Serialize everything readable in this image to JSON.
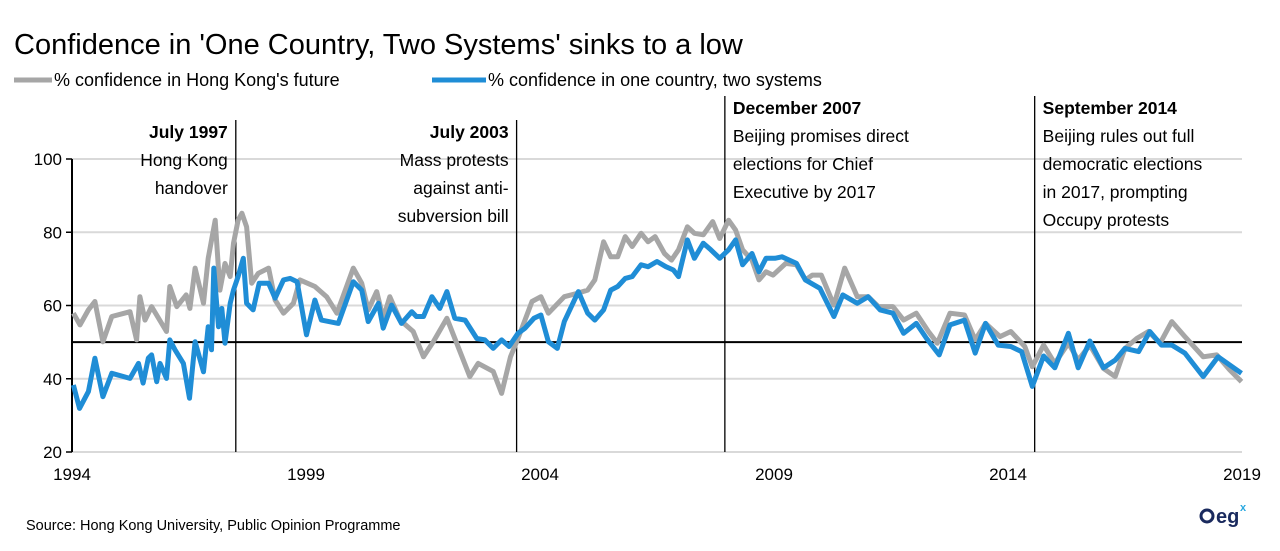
{
  "chart_data": {
    "type": "line",
    "title": "Confidence in 'One Country, Two Systems' sinks to a low",
    "xlabel": "",
    "ylabel": "",
    "xlim": [
      1994,
      2019
    ],
    "ylim": [
      20,
      100
    ],
    "x_ticks": [
      "1994",
      "1999",
      "2004",
      "2009",
      "2014",
      "2019"
    ],
    "y_ticks": [
      "20",
      "40",
      "60",
      "80",
      "100"
    ],
    "grid": "horizontal",
    "legend_position": "top-left",
    "reference_line": 50,
    "series": [
      {
        "name": "% confidence in Hong Kong's future",
        "color": "#a6a6a6",
        "points": [
          [
            1994.03,
            57.9
          ],
          [
            1994.17,
            54.7
          ],
          [
            1994.35,
            58.8
          ],
          [
            1994.49,
            61.1
          ],
          [
            1994.66,
            50.1
          ],
          [
            1994.85,
            57.0
          ],
          [
            1995.24,
            58.3
          ],
          [
            1995.38,
            50.6
          ],
          [
            1995.45,
            62.4
          ],
          [
            1995.56,
            56.0
          ],
          [
            1995.7,
            59.7
          ],
          [
            1996.02,
            52.9
          ],
          [
            1996.09,
            65.2
          ],
          [
            1996.24,
            59.7
          ],
          [
            1996.44,
            62.9
          ],
          [
            1996.52,
            59.2
          ],
          [
            1996.63,
            70.2
          ],
          [
            1996.81,
            60.6
          ],
          [
            1996.91,
            72.9
          ],
          [
            1997.06,
            83.3
          ],
          [
            1997.16,
            64.2
          ],
          [
            1997.27,
            71.5
          ],
          [
            1997.38,
            67.9
          ],
          [
            1997.45,
            77.0
          ],
          [
            1997.55,
            83.3
          ],
          [
            1997.63,
            85.2
          ],
          [
            1997.73,
            81.5
          ],
          [
            1997.84,
            66.1
          ],
          [
            1997.98,
            68.8
          ],
          [
            1998.2,
            70.2
          ],
          [
            1998.34,
            61.5
          ],
          [
            1998.52,
            57.9
          ],
          [
            1998.73,
            60.6
          ],
          [
            1998.87,
            67.0
          ],
          [
            1999.19,
            65.2
          ],
          [
            1999.44,
            62.4
          ],
          [
            1999.66,
            57.9
          ],
          [
            2000.01,
            70.2
          ],
          [
            2000.19,
            66.1
          ],
          [
            2000.33,
            58.8
          ],
          [
            2000.51,
            63.8
          ],
          [
            2000.65,
            56.5
          ],
          [
            2000.79,
            62.4
          ],
          [
            2001.01,
            56.0
          ],
          [
            2001.29,
            52.9
          ],
          [
            2001.51,
            46.0
          ],
          [
            2001.72,
            50.1
          ],
          [
            2002.01,
            56.5
          ],
          [
            2002.22,
            49.7
          ],
          [
            2002.5,
            40.6
          ],
          [
            2002.68,
            44.2
          ],
          [
            2003.0,
            42.0
          ],
          [
            2003.18,
            36.0
          ],
          [
            2003.37,
            46.0
          ],
          [
            2003.53,
            51.0
          ],
          [
            2003.83,
            61.1
          ],
          [
            2004.02,
            62.4
          ],
          [
            2004.18,
            57.9
          ],
          [
            2004.52,
            62.4
          ],
          [
            2004.79,
            63.3
          ],
          [
            2005.02,
            64.2
          ],
          [
            2005.17,
            67.0
          ],
          [
            2005.36,
            77.4
          ],
          [
            2005.51,
            73.3
          ],
          [
            2005.66,
            73.3
          ],
          [
            2005.82,
            78.8
          ],
          [
            2005.97,
            76.1
          ],
          [
            2006.16,
            79.7
          ],
          [
            2006.31,
            77.4
          ],
          [
            2006.46,
            78.8
          ],
          [
            2006.66,
            74.2
          ],
          [
            2006.81,
            72.4
          ],
          [
            2006.96,
            75.2
          ],
          [
            2007.15,
            81.5
          ],
          [
            2007.3,
            79.7
          ],
          [
            2007.49,
            79.3
          ],
          [
            2007.69,
            82.9
          ],
          [
            2007.84,
            78.3
          ],
          [
            2008.03,
            83.3
          ],
          [
            2008.18,
            80.6
          ],
          [
            2008.33,
            75.2
          ],
          [
            2008.53,
            72.4
          ],
          [
            2008.68,
            67.0
          ],
          [
            2008.83,
            69.2
          ],
          [
            2008.98,
            68.3
          ],
          [
            2009.25,
            71.5
          ],
          [
            2009.48,
            71.1
          ],
          [
            2009.67,
            67.0
          ],
          [
            2009.82,
            68.3
          ],
          [
            2010.01,
            68.3
          ],
          [
            2010.28,
            60.1
          ],
          [
            2010.51,
            70.2
          ],
          [
            2010.78,
            62.4
          ],
          [
            2011.01,
            62.4
          ],
          [
            2011.23,
            59.7
          ],
          [
            2011.54,
            59.7
          ],
          [
            2011.77,
            56.0
          ],
          [
            2012.04,
            57.9
          ],
          [
            2012.3,
            52.9
          ],
          [
            2012.49,
            49.7
          ],
          [
            2012.76,
            57.9
          ],
          [
            2013.07,
            57.4
          ],
          [
            2013.3,
            50.6
          ],
          [
            2013.52,
            55.1
          ],
          [
            2013.83,
            51.5
          ],
          [
            2014.06,
            52.9
          ],
          [
            2014.36,
            48.8
          ],
          [
            2014.52,
            43.3
          ],
          [
            2014.76,
            49.2
          ],
          [
            2015.0,
            44.2
          ],
          [
            2015.29,
            49.7
          ],
          [
            2015.5,
            45.1
          ],
          [
            2015.75,
            49.2
          ],
          [
            2016.04,
            42.8
          ],
          [
            2016.29,
            40.6
          ],
          [
            2016.5,
            48.3
          ],
          [
            2016.75,
            51.0
          ],
          [
            2017.0,
            52.9
          ],
          [
            2017.25,
            49.7
          ],
          [
            2017.5,
            55.6
          ],
          [
            2017.78,
            51.5
          ],
          [
            2018.17,
            46.0
          ],
          [
            2018.46,
            46.5
          ],
          [
            2018.74,
            42.4
          ],
          [
            2018.99,
            39.2
          ]
        ]
      },
      {
        "name": "% confidence in one country, two systems",
        "color": "#1f8dd6",
        "points": [
          [
            1994.03,
            38.3
          ],
          [
            1994.16,
            31.9
          ],
          [
            1994.35,
            36.5
          ],
          [
            1994.49,
            45.6
          ],
          [
            1994.66,
            35.1
          ],
          [
            1994.85,
            41.5
          ],
          [
            1995.24,
            40.1
          ],
          [
            1995.42,
            44.2
          ],
          [
            1995.52,
            38.8
          ],
          [
            1995.63,
            45.6
          ],
          [
            1995.7,
            46.5
          ],
          [
            1995.81,
            39.2
          ],
          [
            1995.88,
            44.2
          ],
          [
            1996.02,
            40.1
          ],
          [
            1996.09,
            50.6
          ],
          [
            1996.2,
            47.9
          ],
          [
            1996.38,
            44.2
          ],
          [
            1996.51,
            34.7
          ],
          [
            1996.63,
            50.1
          ],
          [
            1996.81,
            41.9
          ],
          [
            1996.91,
            54.2
          ],
          [
            1996.98,
            47.9
          ],
          [
            1997.03,
            70.2
          ],
          [
            1997.13,
            54.2
          ],
          [
            1997.2,
            59.2
          ],
          [
            1997.27,
            49.7
          ],
          [
            1997.38,
            60.6
          ],
          [
            1997.45,
            64.2
          ],
          [
            1997.55,
            67.9
          ],
          [
            1997.66,
            72.9
          ],
          [
            1997.73,
            60.6
          ],
          [
            1997.87,
            58.8
          ],
          [
            1998.0,
            66.1
          ],
          [
            1998.2,
            66.1
          ],
          [
            1998.34,
            62.0
          ],
          [
            1998.52,
            67.0
          ],
          [
            1998.66,
            67.4
          ],
          [
            1998.81,
            66.5
          ],
          [
            1999.01,
            52.0
          ],
          [
            1999.19,
            61.5
          ],
          [
            1999.33,
            56.0
          ],
          [
            1999.69,
            55.1
          ],
          [
            2000.01,
            66.5
          ],
          [
            2000.19,
            64.2
          ],
          [
            2000.33,
            55.6
          ],
          [
            2000.55,
            60.6
          ],
          [
            2000.65,
            53.8
          ],
          [
            2000.83,
            60.1
          ],
          [
            2001.04,
            55.1
          ],
          [
            2001.26,
            58.3
          ],
          [
            2001.36,
            57.0
          ],
          [
            2001.51,
            57.0
          ],
          [
            2001.69,
            62.4
          ],
          [
            2001.86,
            59.2
          ],
          [
            2002.01,
            63.8
          ],
          [
            2002.18,
            56.5
          ],
          [
            2002.4,
            56.0
          ],
          [
            2002.65,
            51.0
          ],
          [
            2002.82,
            50.6
          ],
          [
            2003.0,
            48.3
          ],
          [
            2003.18,
            50.6
          ],
          [
            2003.34,
            48.8
          ],
          [
            2003.53,
            52.4
          ],
          [
            2003.68,
            53.8
          ],
          [
            2003.87,
            56.5
          ],
          [
            2004.02,
            57.4
          ],
          [
            2004.18,
            50.1
          ],
          [
            2004.37,
            48.3
          ],
          [
            2004.52,
            55.6
          ],
          [
            2004.82,
            63.8
          ],
          [
            2005.02,
            57.9
          ],
          [
            2005.17,
            56.0
          ],
          [
            2005.36,
            58.8
          ],
          [
            2005.51,
            64.2
          ],
          [
            2005.66,
            65.2
          ],
          [
            2005.82,
            67.4
          ],
          [
            2005.97,
            67.9
          ],
          [
            2006.16,
            71.1
          ],
          [
            2006.31,
            70.6
          ],
          [
            2006.5,
            72.0
          ],
          [
            2006.69,
            70.6
          ],
          [
            2006.85,
            69.7
          ],
          [
            2006.96,
            67.9
          ],
          [
            2007.15,
            77.9
          ],
          [
            2007.3,
            72.9
          ],
          [
            2007.49,
            77.0
          ],
          [
            2007.65,
            75.2
          ],
          [
            2007.84,
            72.9
          ],
          [
            2008.03,
            75.2
          ],
          [
            2008.18,
            77.9
          ],
          [
            2008.33,
            71.1
          ],
          [
            2008.53,
            74.2
          ],
          [
            2008.68,
            69.2
          ],
          [
            2008.83,
            72.9
          ],
          [
            2009.02,
            72.9
          ],
          [
            2009.17,
            73.3
          ],
          [
            2009.48,
            71.5
          ],
          [
            2009.67,
            67.0
          ],
          [
            2009.98,
            64.7
          ],
          [
            2010.28,
            57.0
          ],
          [
            2010.47,
            62.9
          ],
          [
            2010.78,
            60.6
          ],
          [
            2011.01,
            62.4
          ],
          [
            2011.27,
            58.8
          ],
          [
            2011.54,
            57.9
          ],
          [
            2011.77,
            52.4
          ],
          [
            2012.04,
            55.1
          ],
          [
            2012.26,
            51.0
          ],
          [
            2012.53,
            46.5
          ],
          [
            2012.76,
            54.7
          ],
          [
            2013.07,
            56.0
          ],
          [
            2013.3,
            47.0
          ],
          [
            2013.52,
            55.1
          ],
          [
            2013.79,
            49.2
          ],
          [
            2014.06,
            48.8
          ],
          [
            2014.29,
            47.4
          ],
          [
            2014.52,
            37.9
          ],
          [
            2014.76,
            46.2
          ],
          [
            2015.0,
            43.0
          ],
          [
            2015.29,
            52.4
          ],
          [
            2015.5,
            43.0
          ],
          [
            2015.75,
            50.3
          ],
          [
            2016.04,
            43.0
          ],
          [
            2016.29,
            45.1
          ],
          [
            2016.5,
            48.3
          ],
          [
            2016.79,
            47.4
          ],
          [
            2017.03,
            52.9
          ],
          [
            2017.28,
            49.2
          ],
          [
            2017.5,
            49.2
          ],
          [
            2017.78,
            47.0
          ],
          [
            2018.17,
            40.6
          ],
          [
            2018.49,
            46.0
          ],
          [
            2018.99,
            41.5
          ]
        ]
      }
    ],
    "annotations": [
      {
        "x": 1997.5,
        "title": "July 1997",
        "lines": [
          "Hong Kong",
          "handover"
        ],
        "align": "right"
      },
      {
        "x": 2003.5,
        "title": "July 2003",
        "lines": [
          "Mass protests",
          "against anti-",
          "subversion bill"
        ],
        "align": "right"
      },
      {
        "x": 2007.95,
        "title": "December 2007",
        "lines": [
          "Beijing promises direct",
          "elections for Chief",
          "Executive by 2017"
        ],
        "align": "left"
      },
      {
        "x": 2014.57,
        "title": "September 2014",
        "lines": [
          "Beijing rules out full",
          "democratic elections",
          "in 2017, prompting",
          "Occupy protests"
        ],
        "align": "left"
      }
    ]
  },
  "source": "Source: Hong Kong University, Public Opinion Programme",
  "logo": {
    "text": "egx",
    "color": "#1a2a5e",
    "accent": "#29a8e0"
  }
}
